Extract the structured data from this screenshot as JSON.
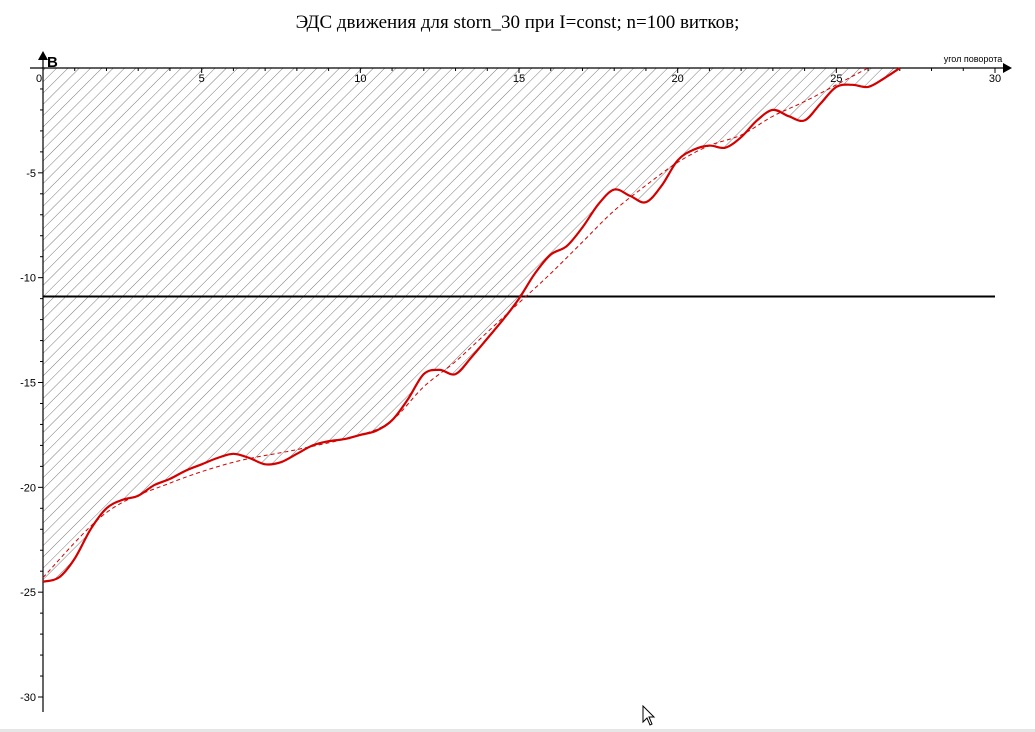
{
  "chart_data": {
    "type": "line",
    "title": "ЭДС движения  для storn_30 при I=const; n=100 витков;",
    "xlabel": "угол поворота",
    "ylabel": "B",
    "xlim": [
      0,
      30
    ],
    "ylim": [
      -30,
      0
    ],
    "xticks": [
      0,
      5,
      10,
      15,
      20,
      25,
      30
    ],
    "yticks": [
      -5,
      -10,
      -15,
      -20,
      -25,
      -30
    ],
    "grid": false,
    "legend": "none",
    "hatched_area": "between curve and y=0",
    "reference_line_y": -10.9,
    "series": [
      {
        "style": "solid",
        "color": "#d40000",
        "x": [
          0,
          0.5,
          1,
          1.5,
          2,
          2.5,
          3,
          3.5,
          4,
          4.5,
          5,
          5.5,
          6,
          6.5,
          7,
          7.5,
          8,
          8.5,
          9,
          9.5,
          10,
          10.5,
          11,
          11.5,
          12,
          12.5,
          13,
          13.5,
          14,
          14.5,
          15,
          15.5,
          16,
          16.5,
          17,
          17.5,
          18,
          18.5,
          19,
          19.5,
          20,
          20.5,
          21,
          21.5,
          22,
          22.5,
          23,
          23.5,
          24,
          24.5,
          25,
          25.5,
          26,
          26.5,
          27
        ],
        "y": [
          -24.5,
          -24.3,
          -23.4,
          -22.0,
          -21.0,
          -20.6,
          -20.4,
          -19.9,
          -19.6,
          -19.2,
          -18.9,
          -18.6,
          -18.4,
          -18.6,
          -18.9,
          -18.8,
          -18.4,
          -18.0,
          -17.8,
          -17.7,
          -17.5,
          -17.3,
          -16.8,
          -15.8,
          -14.6,
          -14.4,
          -14.6,
          -13.8,
          -12.9,
          -12.0,
          -11.0,
          -9.8,
          -8.9,
          -8.5,
          -7.6,
          -6.5,
          -5.8,
          -6.1,
          -6.4,
          -5.6,
          -4.4,
          -3.9,
          -3.7,
          -3.8,
          -3.3,
          -2.5,
          -2.0,
          -2.3,
          -2.5,
          -1.7,
          -0.9,
          -0.8,
          -0.9,
          -0.5,
          0.0
        ]
      },
      {
        "style": "dashed",
        "color": "#d40000",
        "x": [
          0,
          2,
          4,
          6,
          8,
          10,
          11,
          12,
          13,
          14,
          15,
          16,
          17,
          18,
          19,
          20,
          21,
          22,
          23,
          24,
          25,
          26
        ],
        "y": [
          -24.3,
          -21.2,
          -19.8,
          -18.8,
          -18.2,
          -17.5,
          -16.8,
          -15.2,
          -14.0,
          -12.6,
          -11.2,
          -9.8,
          -8.3,
          -6.8,
          -5.6,
          -4.5,
          -3.7,
          -3.2,
          -2.3,
          -1.6,
          -0.8,
          0.0
        ]
      }
    ]
  },
  "pointer": "arrow-cursor"
}
